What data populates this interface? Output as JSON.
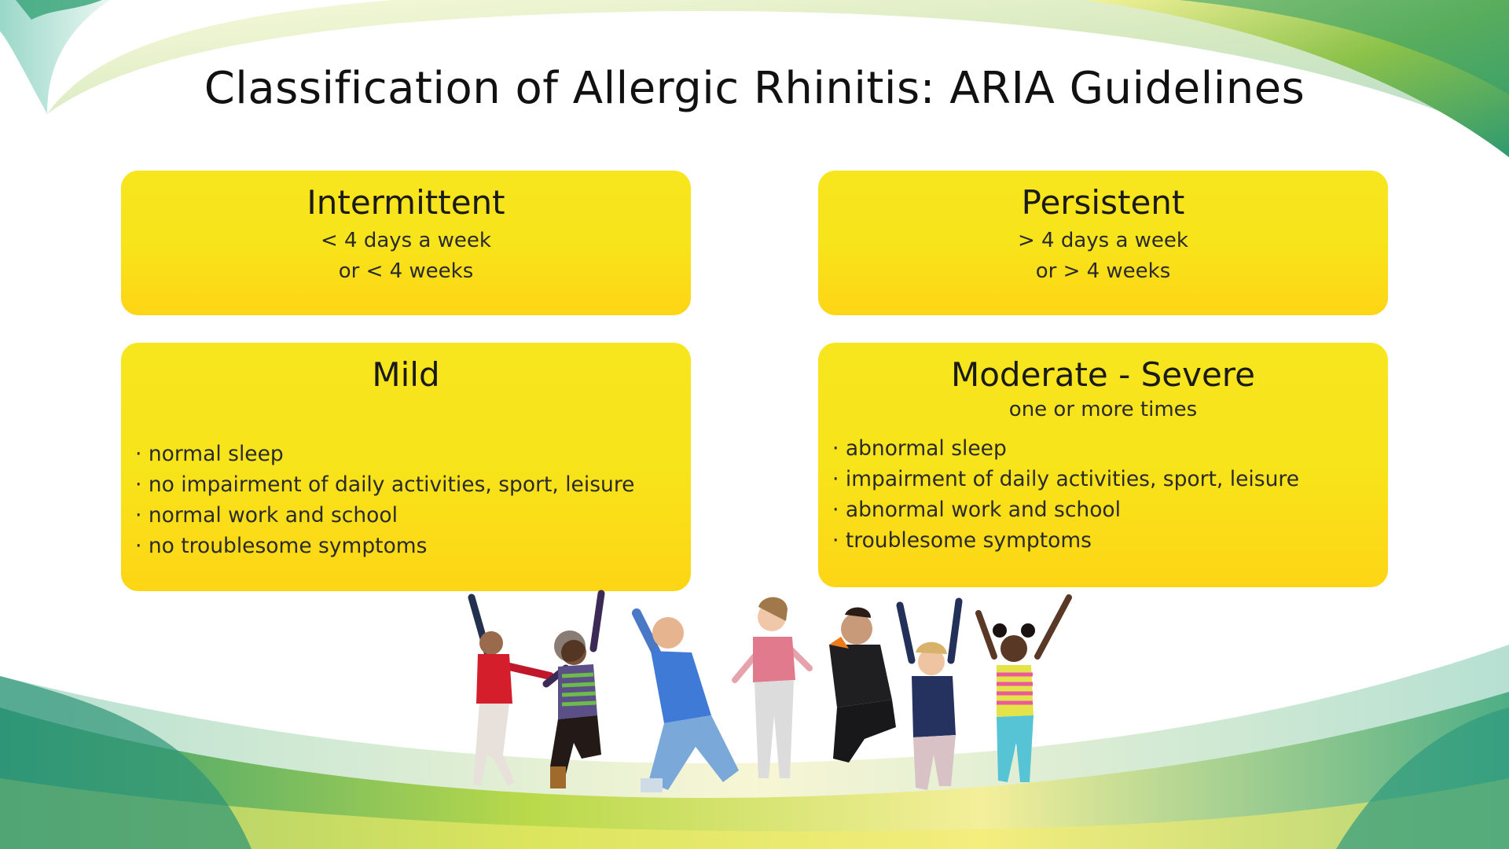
{
  "title": "Classification of Allergic Rhinitis: ARIA Guidelines",
  "cards": {
    "intermittent": {
      "heading": "Intermittent",
      "lines": [
        "< 4 days a week",
        "or < 4 weeks"
      ]
    },
    "persistent": {
      "heading": "Persistent",
      "lines": [
        "> 4 days a week",
        "or > 4 weeks"
      ]
    },
    "mild": {
      "heading": "Mild",
      "bullets": [
        "normal sleep",
        "no impairment of daily activities, sport, leisure",
        "normal work and school",
        "no troublesome symptoms"
      ]
    },
    "moderate_severe": {
      "heading": "Moderate - Severe",
      "subheading": "one or more times",
      "bullets": [
        "abnormal sleep",
        "impairment of daily activities, sport, leisure",
        "abnormal work and school",
        "troublesome symptoms"
      ]
    }
  },
  "colors": {
    "card_yellow": "#f8e41a",
    "card_bottom": "#fdd515",
    "swoosh_green": "#3aa66a",
    "swoosh_teal": "#7cc9b4",
    "swoosh_yellow": "#e6e64a"
  },
  "image": "jumping-children-photo"
}
